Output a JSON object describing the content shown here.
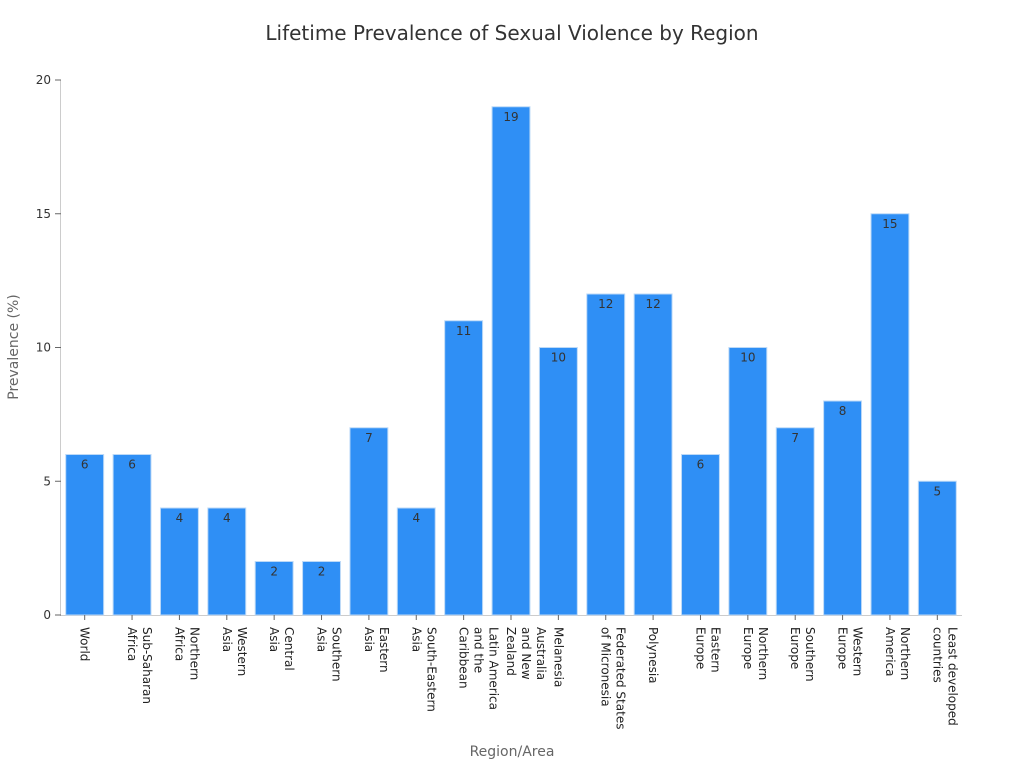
{
  "chart_data": {
    "type": "bar",
    "title": "Lifetime Prevalence of Sexual Violence by Region",
    "xlabel": "Region/Area",
    "ylabel": "Prevalence (%)",
    "ylim": [
      0,
      20
    ],
    "yticks": [
      0,
      5,
      10,
      15,
      20
    ],
    "grid": false,
    "categories": [
      "World",
      "Sub-Saharan Africa",
      "Northern Africa",
      "Western Asia",
      "Central Asia",
      "Southern Asia",
      "Eastern Asia",
      "South-Eastern Asia",
      "Latin America and the Caribbean",
      "Australia and New Zealand",
      "Melanesia",
      "Federated States of Micronesia",
      "Polynesia",
      "Eastern Europe",
      "Northern Europe",
      "Southern Europe",
      "Western Europe",
      "Northern America",
      "Least developed countries"
    ],
    "category_lines": [
      [
        "World"
      ],
      [
        "Sub-Saharan",
        "Africa"
      ],
      [
        "Northern",
        "Africa"
      ],
      [
        "Western",
        "Asia"
      ],
      [
        "Central",
        "Asia"
      ],
      [
        "Southern",
        "Asia"
      ],
      [
        "Eastern",
        "Asia"
      ],
      [
        "South-Eastern",
        "Asia"
      ],
      [
        "Latin America",
        "and the",
        "Caribbean"
      ],
      [
        "Australia",
        "and New",
        "Zealand"
      ],
      [
        "Melanesia"
      ],
      [
        "Federated States",
        "of Micronesia"
      ],
      [
        "Polynesia"
      ],
      [
        "Eastern",
        "Europe"
      ],
      [
        "Northern",
        "Europe"
      ],
      [
        "Southern",
        "Europe"
      ],
      [
        "Western",
        "Europe"
      ],
      [
        "Northern",
        "America"
      ],
      [
        "Least developed",
        "countries"
      ]
    ],
    "values": [
      6,
      6,
      4,
      4,
      2,
      2,
      7,
      4,
      11,
      19,
      10,
      12,
      12,
      6,
      10,
      7,
      8,
      15,
      5
    ],
    "bar_color": "#2f8ff5"
  }
}
